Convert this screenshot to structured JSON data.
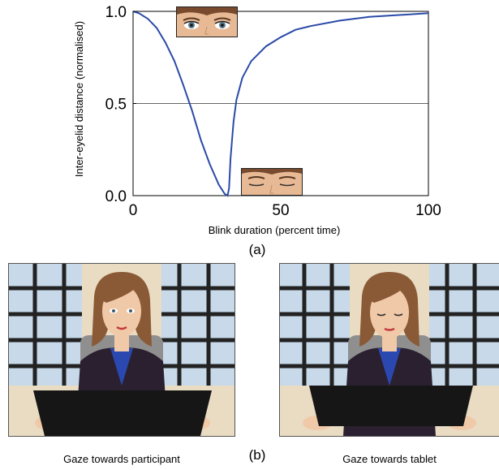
{
  "chart_data": {
    "type": "line",
    "title": "",
    "xlabel": "Blink duration (percent time)",
    "ylabel": "Inter-eyelid distance (normalised)",
    "xlim": [
      0,
      100
    ],
    "ylim": [
      0,
      1
    ],
    "xticks": [
      "0",
      "50",
      "100"
    ],
    "yticks": [
      "0.0",
      "0.5",
      "1.0"
    ],
    "reference_line": 0.5,
    "grid": false,
    "series": [
      {
        "name": "",
        "color": "#2b4aa8",
        "x": [
          0,
          2,
          5,
          8,
          11,
          14,
          17,
          20,
          23,
          26,
          29,
          31,
          32,
          32.5,
          33,
          34,
          35,
          37,
          40,
          45,
          50,
          55,
          60,
          70,
          80,
          90,
          100
        ],
        "y": [
          1.0,
          0.99,
          0.96,
          0.91,
          0.83,
          0.73,
          0.6,
          0.46,
          0.3,
          0.17,
          0.06,
          0.01,
          0.0,
          0.04,
          0.2,
          0.4,
          0.52,
          0.64,
          0.73,
          0.81,
          0.86,
          0.9,
          0.92,
          0.95,
          0.97,
          0.98,
          0.99
        ]
      }
    ]
  },
  "captions": {
    "sub_a": "(a)",
    "sub_b": "(b)",
    "left_panel": "Gaze towards participant",
    "right_panel": "Gaze towards tablet"
  },
  "colors": {
    "curve": "#2b4aa8",
    "suit": "#2a2030",
    "shirt": "#2b48b0",
    "hair": "#8a5a36",
    "skin": "#f0c9a8",
    "tablet": "#161616",
    "sky": "#bcd3ea",
    "frame": "#2b2b2b",
    "chair": "#9a9a9a"
  }
}
